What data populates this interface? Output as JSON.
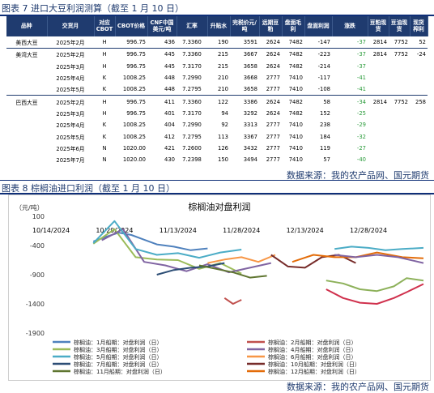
{
  "table_section": {
    "title": "图表 7 进口大豆利润测算（截至 1 月 10 日）",
    "headers": [
      "品种",
      "交货月",
      "对应CBOT",
      "CBOT价格",
      "CNF中国美元/吨",
      "汇率",
      "升贴水",
      "完税价元/吨",
      "远期豆粕",
      "盘面毛利",
      "盘面利润",
      "涨跌",
      "豆粕现货",
      "豆油现货",
      "现货榨利"
    ],
    "rows": [
      [
        "美西大豆",
        "2025年2月",
        "H",
        "996.75",
        "436",
        "7.3360",
        "190",
        "3591",
        "2624",
        "7482",
        "-147",
        "-37",
        "2814",
        "7752",
        "52"
      ],
      [
        "美湾大豆",
        "2025年2月",
        "H",
        "996.75",
        "445",
        "7.3360",
        "215",
        "3667",
        "2624",
        "7482",
        "-223",
        "-37",
        "2814",
        "7752",
        "-24"
      ],
      [
        "",
        "2025年3月",
        "H",
        "996.75",
        "445",
        "7.3170",
        "215",
        "3658",
        "2624",
        "7482",
        "-214",
        "-37",
        "",
        "",
        ""
      ],
      [
        "",
        "2025年4月",
        "K",
        "1008.25",
        "448",
        "7.2990",
        "210",
        "3668",
        "2777",
        "7410",
        "-117",
        "-41",
        "",
        "",
        ""
      ],
      [
        "",
        "2025年5月",
        "K",
        "1008.25",
        "448",
        "7.2795",
        "210",
        "3658",
        "2777",
        "7410",
        "-108",
        "-41",
        "",
        "",
        ""
      ],
      [
        "巴西大豆",
        "2025年2月",
        "H",
        "996.75",
        "411",
        "7.3360",
        "122",
        "3386",
        "2624",
        "7482",
        "58",
        "-34",
        "2814",
        "7752",
        "258"
      ],
      [
        "",
        "2025年3月",
        "H",
        "996.75",
        "401",
        "7.3170",
        "94",
        "3292",
        "2624",
        "7482",
        "152",
        "-25",
        "",
        "",
        ""
      ],
      [
        "",
        "2025年4月",
        "K",
        "1008.25",
        "404",
        "7.2990",
        "92",
        "3313",
        "2777",
        "7410",
        "238",
        "-29",
        "",
        "",
        ""
      ],
      [
        "",
        "2025年5月",
        "K",
        "1008.25",
        "412",
        "7.2795",
        "113",
        "3367",
        "2777",
        "7410",
        "184",
        "-32",
        "",
        "",
        ""
      ],
      [
        "",
        "2025年6月",
        "N",
        "1020.00",
        "421",
        "7.2600",
        "126",
        "3432",
        "2777",
        "7410",
        "119",
        "-27",
        "",
        "",
        ""
      ],
      [
        "",
        "2025年7月",
        "N",
        "1020.00",
        "430",
        "7.2398",
        "150",
        "3494",
        "2777",
        "7410",
        "57",
        "-40",
        "",
        "",
        ""
      ]
    ],
    "source": "数据来源：我的农产品网、国元期货"
  },
  "chart_section": {
    "title": "图表 8 棕榈油进口利润（截至 1 月 10 日）",
    "source": "数据来源：我的农产品网、国元期货"
  },
  "chart_data": {
    "type": "line",
    "title": "棕榈油对盘利润",
    "ylabel": "元/吨",
    "ylim": [
      -1900,
      100
    ],
    "yticks": [
      100,
      -400,
      -900,
      -1400,
      -1900
    ],
    "xtick_labels": [
      "10/14/2024",
      "10/29/2024",
      "11/13/2024",
      "11/28/2024",
      "12/13/2024",
      "12/28/2024"
    ],
    "xlim": [
      "10/14/2024",
      "01/10/2025"
    ],
    "grid": false,
    "legend_position": "bottom",
    "series": [
      {
        "name": "棕榈油：1月船期：对盘利润（日）",
        "color": "#4f81bd",
        "points": [
          [
            "10/24/2024",
            -330
          ],
          [
            "10/27/2024",
            -250
          ],
          [
            "10/30/2024",
            -180
          ],
          [
            "11/02/2024",
            -220
          ],
          [
            "11/05/2024",
            -300
          ],
          [
            "11/08/2024",
            -380
          ],
          [
            "11/12/2024",
            -420
          ],
          [
            "11/16/2024",
            -480
          ],
          [
            "11/20/2024",
            -450
          ]
        ]
      },
      {
        "name": "棕榈油：2月船期：对盘利润（日）",
        "color": "#c0504d",
        "points": [
          [
            "11/24/2024",
            -1300
          ],
          [
            "11/26/2024",
            -1400
          ],
          [
            "11/28/2024",
            -1330
          ]
        ]
      },
      {
        "name": "棕榈油：3月船期：对盘利润（日）",
        "color": "#9bbb59",
        "points": [
          [
            "10/24/2024",
            -370
          ],
          [
            "10/29/2024",
            -120
          ],
          [
            "11/03/2024",
            -600
          ],
          [
            "11/08/2024",
            -640
          ],
          [
            "11/13/2024",
            -650
          ],
          [
            "11/18/2024",
            -800
          ],
          [
            "11/23/2024",
            -700
          ],
          [
            "11/28/2024",
            -880
          ]
        ]
      },
      {
        "name": "棕榈油：4月船期：对盘利润（日）",
        "color": "#8064a2",
        "points": [
          [
            "10/26/2024",
            -310
          ],
          [
            "10/31/2024",
            -120
          ],
          [
            "11/05/2024",
            -680
          ],
          [
            "11/10/2024",
            -740
          ],
          [
            "11/15/2024",
            -840
          ],
          [
            "11/20/2024",
            -720
          ],
          [
            "11/25/2024",
            -860
          ],
          [
            "11/30/2024",
            -780
          ],
          [
            "12/05/2024",
            -700
          ]
        ]
      },
      {
        "name": "棕榈油：5月船期：对盘利润（日）",
        "color": "#4bacc6",
        "points": [
          [
            "10/24/2024",
            -360
          ],
          [
            "10/29/2024",
            20
          ],
          [
            "11/03/2024",
            -460
          ],
          [
            "11/08/2024",
            -560
          ],
          [
            "11/13/2024",
            -530
          ],
          [
            "11/18/2024",
            -610
          ],
          [
            "11/23/2024",
            -520
          ],
          [
            "11/28/2024",
            -470
          ]
        ]
      },
      {
        "name": "棕榈油：6月船期：对盘利润（日）",
        "color": "#f79646",
        "points": [
          [
            "11/20/2024",
            -700
          ],
          [
            "11/24/2024",
            -640
          ],
          [
            "11/28/2024",
            -600
          ],
          [
            "12/02/2024",
            -680
          ],
          [
            "12/06/2024",
            -560
          ]
        ]
      },
      {
        "name": "棕榈油：7月船期：对盘利润（日）",
        "color": "#2c4d75",
        "points": [
          [
            "11/08/2024",
            -900
          ],
          [
            "11/12/2024",
            -820
          ],
          [
            "11/16/2024",
            -780
          ],
          [
            "11/20/2024",
            -760
          ],
          [
            "11/24/2024",
            -700
          ]
        ]
      },
      {
        "name": "棕榈油：10月船期：对盘利润（日）",
        "color": "#772c2a",
        "points": [
          [
            "12/05/2024",
            -560
          ],
          [
            "12/09/2024",
            -760
          ],
          [
            "12/13/2024",
            -780
          ],
          [
            "12/17/2024",
            -600
          ],
          [
            "12/21/2024",
            -560
          ],
          [
            "12/25/2024",
            -700
          ]
        ]
      },
      {
        "name": "棕榈油：11月船期：对盘利润（日）",
        "color": "#5f7530",
        "points": [
          [
            "11/18/2024",
            -740
          ],
          [
            "11/22/2024",
            -800
          ],
          [
            "11/26/2024",
            -860
          ],
          [
            "11/30/2024",
            -950
          ],
          [
            "12/04/2024",
            -920
          ]
        ]
      },
      {
        "name": "棕榈油：12月船期：对盘利润（日）",
        "color": "#e36c09",
        "points": [
          [
            "12/10/2024",
            -680
          ],
          [
            "12/15/2024",
            -560
          ],
          [
            "12/20/2024",
            -600
          ],
          [
            "12/25/2024",
            -600
          ],
          [
            "12/30/2024",
            -520
          ],
          [
            "01/05/2025",
            -600
          ],
          [
            "01/10/2025",
            -620
          ]
        ]
      },
      {
        "name": "",
        "color": "#d0314d",
        "points": [
          [
            "12/18/2024",
            -1150
          ],
          [
            "12/22/2024",
            -1300
          ],
          [
            "12/26/2024",
            -1380
          ],
          [
            "12/30/2024",
            -1400
          ],
          [
            "01/03/2025",
            -1300
          ],
          [
            "01/06/2025",
            -1200
          ],
          [
            "01/10/2025",
            -1060
          ]
        ]
      },
      {
        "name": "",
        "color": "#8db15a",
        "points": [
          [
            "12/18/2024",
            -1000
          ],
          [
            "12/22/2024",
            -1050
          ],
          [
            "12/26/2024",
            -1150
          ],
          [
            "12/30/2024",
            -1180
          ],
          [
            "01/03/2025",
            -1100
          ],
          [
            "01/06/2025",
            -960
          ],
          [
            "01/10/2025",
            -1000
          ]
        ]
      },
      {
        "name": "",
        "color": "#4bacc6",
        "points": [
          [
            "12/20/2024",
            -460
          ],
          [
            "12/24/2024",
            -420
          ],
          [
            "12/28/2024",
            -440
          ],
          [
            "01/01/2025",
            -480
          ],
          [
            "01/05/2025",
            -460
          ],
          [
            "01/10/2025",
            -440
          ]
        ]
      },
      {
        "name": "",
        "color": "#8064a2",
        "points": [
          [
            "12/20/2024",
            -560
          ],
          [
            "12/25/2024",
            -600
          ],
          [
            "12/30/2024",
            -560
          ],
          [
            "01/04/2025",
            -600
          ],
          [
            "01/10/2025",
            -700
          ]
        ]
      }
    ]
  }
}
